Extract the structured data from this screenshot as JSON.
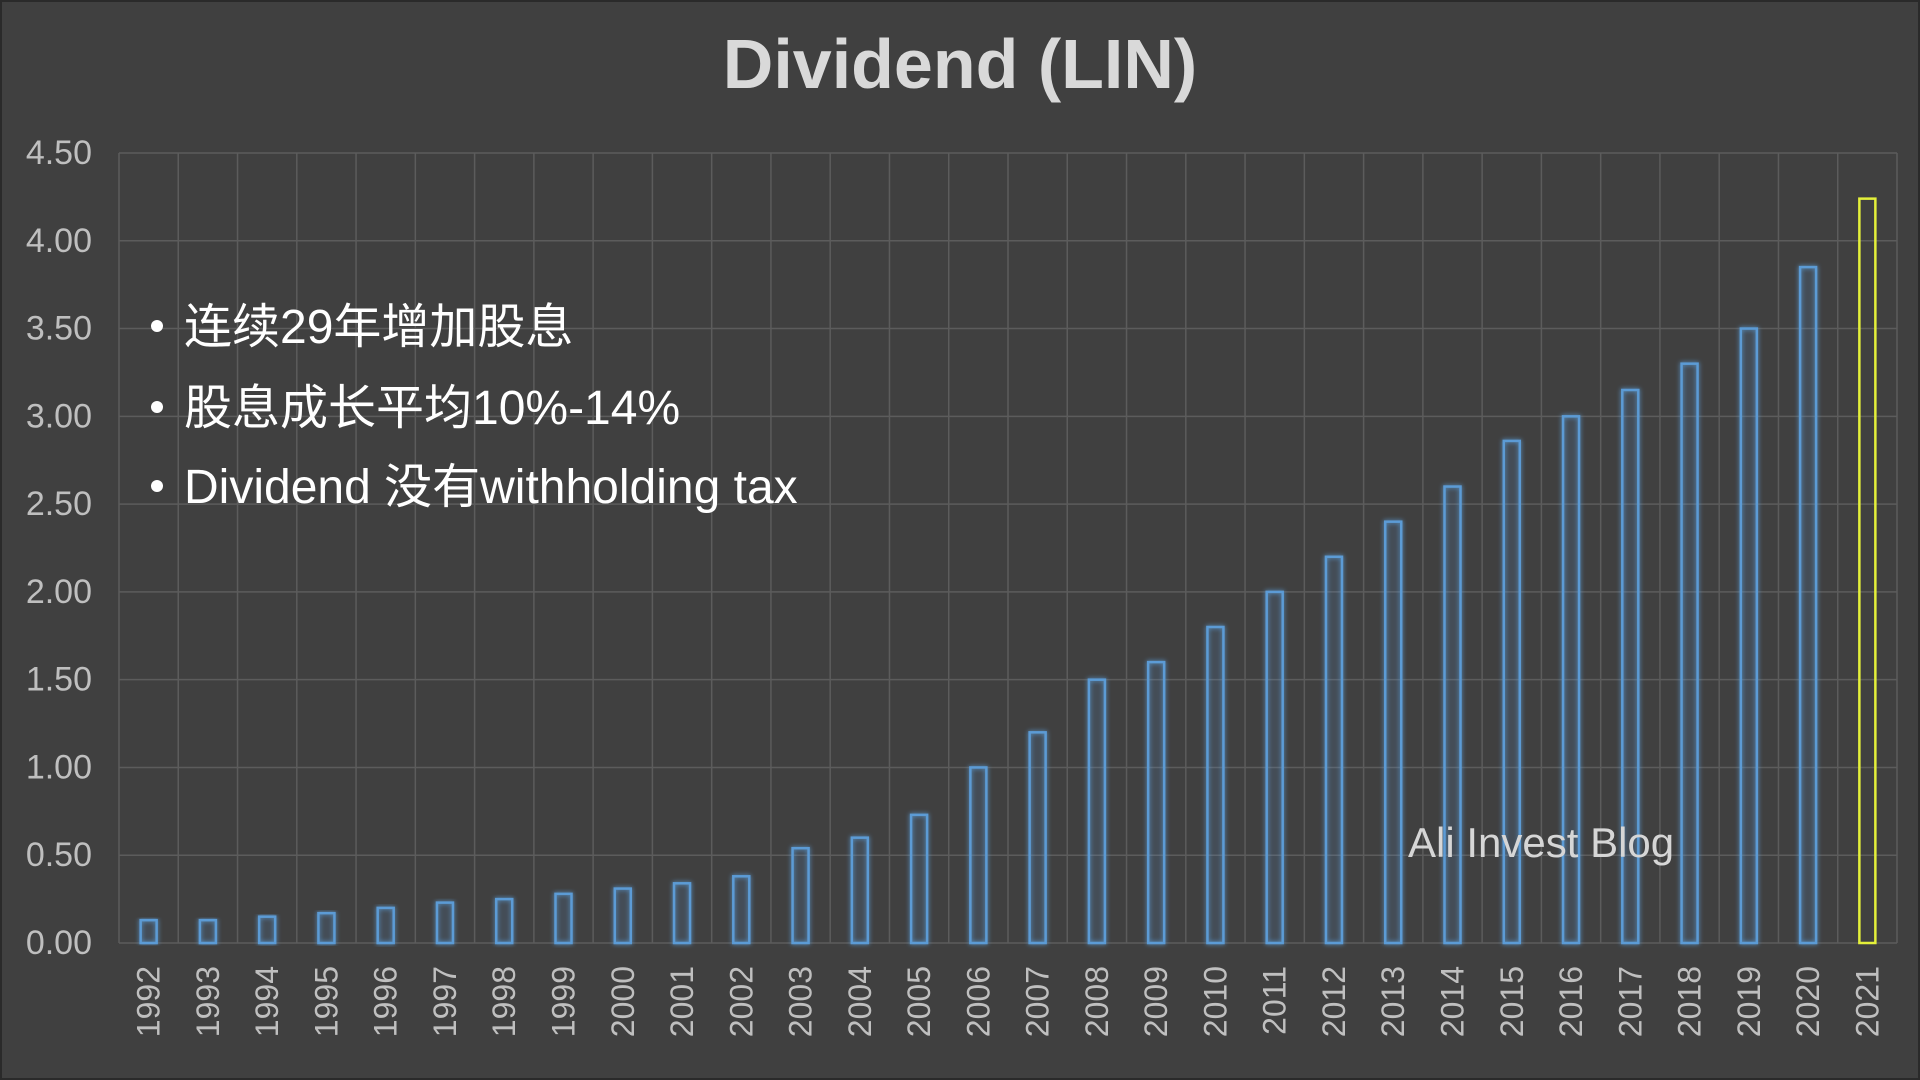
{
  "colors": {
    "background": "#404040",
    "frame": "#2a2a2a",
    "gridline": "#5c5c5c",
    "bar_outline": "#5b9bd5",
    "highlight_outline": "#e4f03a",
    "title": "#d9d9d9",
    "tick_label": "#bfbfbf",
    "annotation": "#ffffff",
    "watermark": "#d6d6d6"
  },
  "watermark": "Ali Invest Blog",
  "chart_data": {
    "type": "bar",
    "title": "Dividend (LIN)",
    "xlabel": "",
    "ylabel": "",
    "categories": [
      "1992",
      "1993",
      "1994",
      "1995",
      "1996",
      "1997",
      "1998",
      "1999",
      "2000",
      "2001",
      "2002",
      "2003",
      "2004",
      "2005",
      "2006",
      "2007",
      "2008",
      "2009",
      "2010",
      "2011",
      "2012",
      "2013",
      "2014",
      "2015",
      "2016",
      "2017",
      "2018",
      "2019",
      "2020",
      "2021"
    ],
    "series": [
      {
        "values": [
          0.13,
          0.13,
          0.15,
          0.17,
          0.2,
          0.23,
          0.25,
          0.28,
          0.31,
          0.34,
          0.38,
          0.54,
          0.6,
          0.73,
          1.0,
          1.2,
          1.5,
          1.6,
          1.8,
          2.0,
          2.2,
          2.4,
          2.6,
          2.86,
          3.0,
          3.15,
          3.3,
          3.5,
          3.85,
          4.24
        ]
      }
    ],
    "ylim": [
      0,
      4.5
    ],
    "yticks": [
      "0.00",
      "0.50",
      "1.00",
      "1.50",
      "2.00",
      "2.50",
      "3.00",
      "3.50",
      "4.00",
      "4.50"
    ],
    "grid": true,
    "legend": "none",
    "highlighted_category": "2021",
    "annotations": [
      "连续29年增加股息",
      "股息成长平均10%-14%",
      "Dividend 没有withholding tax"
    ]
  }
}
